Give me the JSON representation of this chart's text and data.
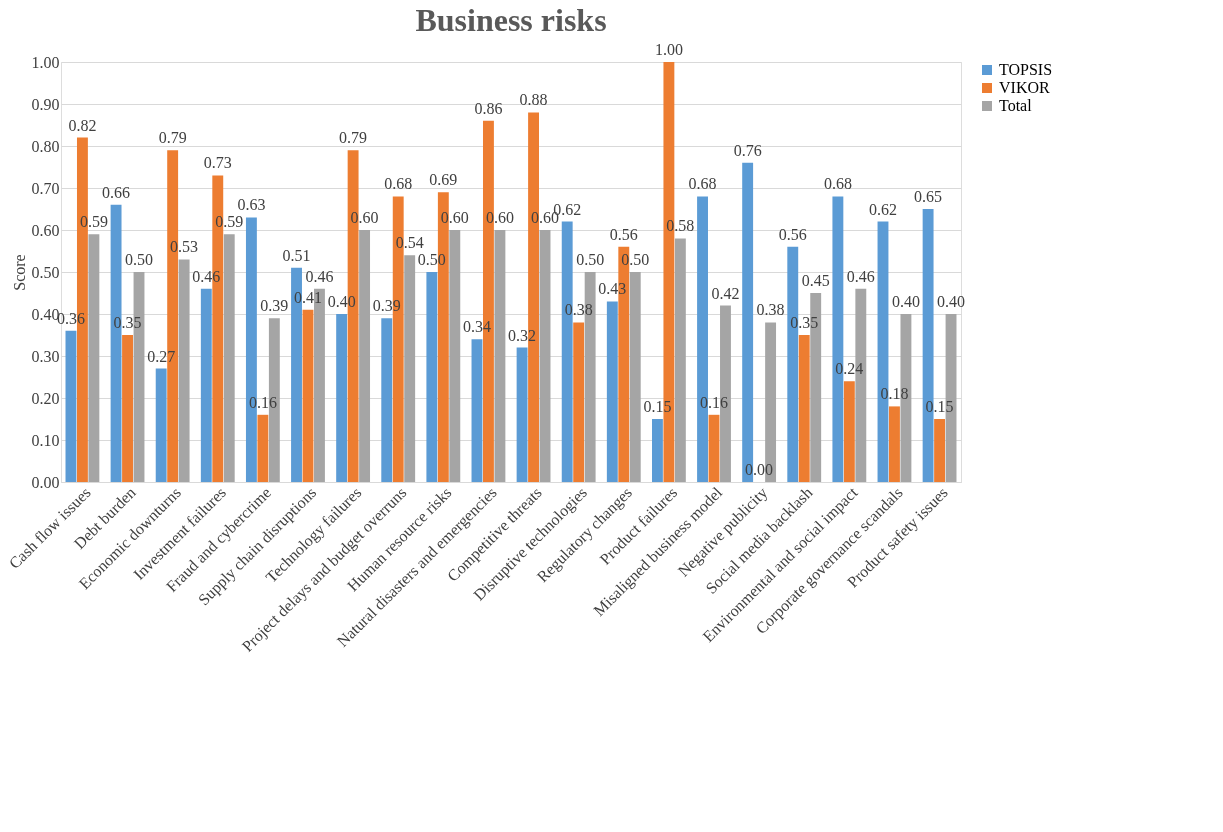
{
  "chart_data": {
    "type": "bar",
    "title": "Business risks",
    "ylabel": "Score",
    "categories": [
      "Cash flow issues",
      "Debt burden",
      "Economic downturns",
      "Investment failures",
      "Fraud and cybercrime",
      "Supply chain disruptions",
      "Technology failures",
      "Project delays and budget overruns",
      "Human resource risks",
      "Natural disasters and emergencies",
      "Competitive threats",
      "Disruptive technologies",
      "Regulatory changes",
      "Product failures",
      "Misaligned business model",
      "Negative publicity",
      "Social media backlash",
      "Environmental and social impact",
      "Corporate governance scandals",
      "Product safety issues"
    ],
    "series": [
      {
        "name": "TOPSIS",
        "color": "#5b9bd5",
        "values": [
          0.36,
          0.66,
          0.27,
          0.46,
          0.63,
          0.51,
          0.4,
          0.39,
          0.5,
          0.34,
          0.32,
          0.62,
          0.43,
          0.15,
          0.68,
          0.76,
          0.56,
          0.68,
          0.62,
          0.65
        ],
        "value_labels": [
          "0.36",
          "0.66",
          "0.27",
          "0.46",
          "0.63",
          "0.51",
          "0.40",
          "0.39",
          "0.50",
          "0.34",
          "0.32",
          "0.62",
          "0.43",
          "0.15",
          "0.68",
          "0.76",
          "0.56",
          "0.68",
          "0.62",
          "0.65"
        ]
      },
      {
        "name": "VIKOR",
        "color": "#ed7d31",
        "values": [
          0.82,
          0.35,
          0.79,
          0.73,
          0.16,
          0.41,
          0.79,
          0.68,
          0.69,
          0.86,
          0.88,
          0.38,
          0.56,
          1.0,
          0.16,
          0.0,
          0.35,
          0.24,
          0.18,
          0.15
        ],
        "value_labels": [
          "0.82",
          "0.35",
          "0.79",
          "0.73",
          "0.16",
          "0.41",
          "0.79",
          "0.68",
          "0.69",
          "0.86",
          "0.88",
          "0.38",
          "0.56",
          "1.00",
          "0.16",
          "0.00",
          "0.35",
          "0.24",
          "0.18",
          "0.15"
        ]
      },
      {
        "name": "Total",
        "color": "#a5a5a5",
        "values": [
          0.59,
          0.5,
          0.53,
          0.59,
          0.39,
          0.46,
          0.6,
          0.54,
          0.6,
          0.6,
          0.6,
          0.5,
          0.5,
          0.58,
          0.42,
          0.38,
          0.45,
          0.46,
          0.4,
          0.4
        ],
        "value_labels": [
          "0.59",
          "0.50",
          "0.53",
          "0.59",
          "0.39",
          "0.46",
          "0.60",
          "0.54",
          "0.60",
          "0.60",
          "0.60",
          "0.50",
          "0.50",
          "0.58",
          "0.42",
          "0.38",
          "0.45",
          "0.46",
          "0.40",
          "0.40"
        ]
      }
    ],
    "ylim": [
      0,
      1
    ],
    "yticks": [
      {
        "value": 0,
        "label": "0.00"
      },
      {
        "value": 0.1,
        "label": "0.10"
      },
      {
        "value": 0.2,
        "label": "0.20"
      },
      {
        "value": 0.3,
        "label": "0.30"
      },
      {
        "value": 0.4,
        "label": "0.40"
      },
      {
        "value": 0.5,
        "label": "0.50"
      },
      {
        "value": 0.6,
        "label": "0.60"
      },
      {
        "value": 0.7,
        "label": "0.70"
      },
      {
        "value": 0.8,
        "label": "0.80"
      },
      {
        "value": 0.9,
        "label": "0.90"
      },
      {
        "value": 1,
        "label": "1.00"
      }
    ],
    "grid": "y",
    "legend": "right"
  }
}
